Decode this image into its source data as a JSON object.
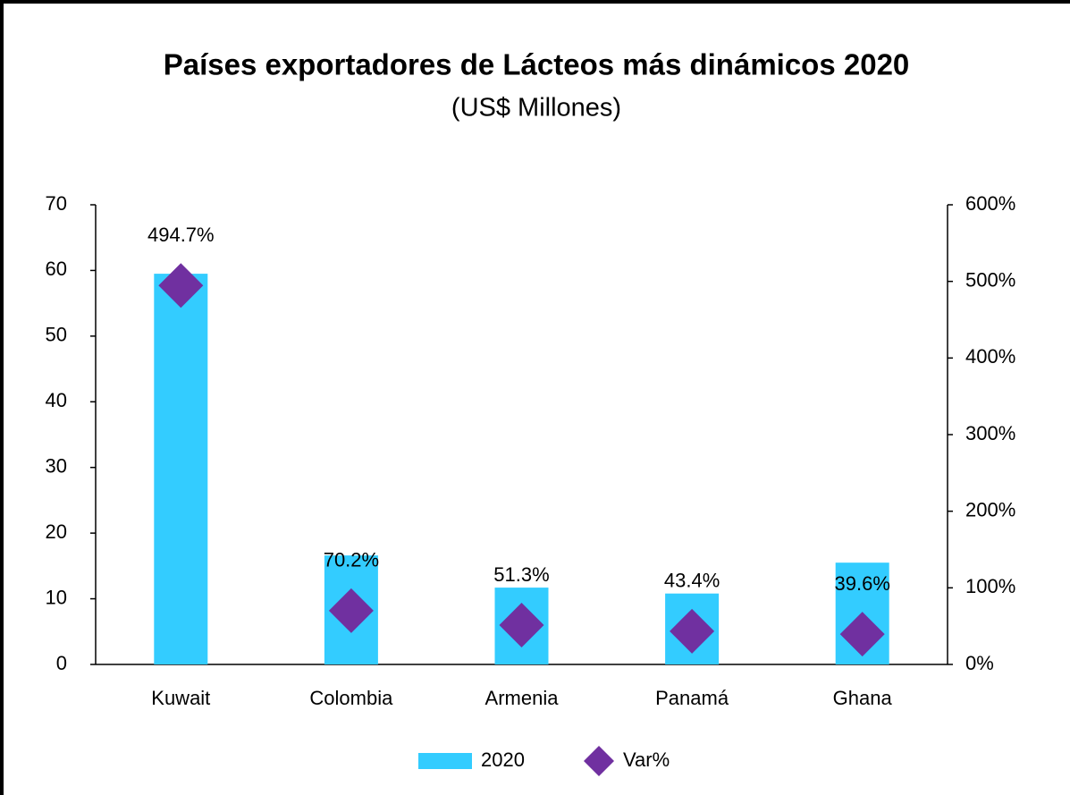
{
  "chart_data": {
    "type": "bar",
    "title": "Países exportadores de Lácteos más dinámicos 2020",
    "subtitle": "(US$ Millones)",
    "categories": [
      "Kuwait",
      "Colombia",
      "Armenia",
      "Panamá",
      "Ghana"
    ],
    "series": [
      {
        "name": "2020",
        "type": "bar",
        "color": "#33ccff",
        "values": [
          59.5,
          16.6,
          11.7,
          10.8,
          15.5
        ]
      },
      {
        "name": "Var%",
        "type": "scatter",
        "axis": "y2",
        "color": "#7030a0",
        "values": [
          494.7,
          70.2,
          51.3,
          43.4,
          39.6
        ],
        "value_labels": [
          "494.7%",
          "70.2%",
          "51.3%",
          "43.4%",
          "39.6%"
        ]
      }
    ],
    "ylim": [
      0,
      70
    ],
    "yticks": [
      0,
      10,
      20,
      30,
      40,
      50,
      60,
      70
    ],
    "y2lim": [
      0,
      600
    ],
    "y2ticks": [
      {
        "value": 0,
        "label": "0%"
      },
      {
        "value": 100,
        "label": "100%"
      },
      {
        "value": 200,
        "label": "200%"
      },
      {
        "value": 300,
        "label": "300%"
      },
      {
        "value": 400,
        "label": "400%"
      },
      {
        "value": 500,
        "label": "500%"
      },
      {
        "value": 600,
        "label": "600%"
      }
    ],
    "grid": false,
    "legend": "bottom"
  }
}
